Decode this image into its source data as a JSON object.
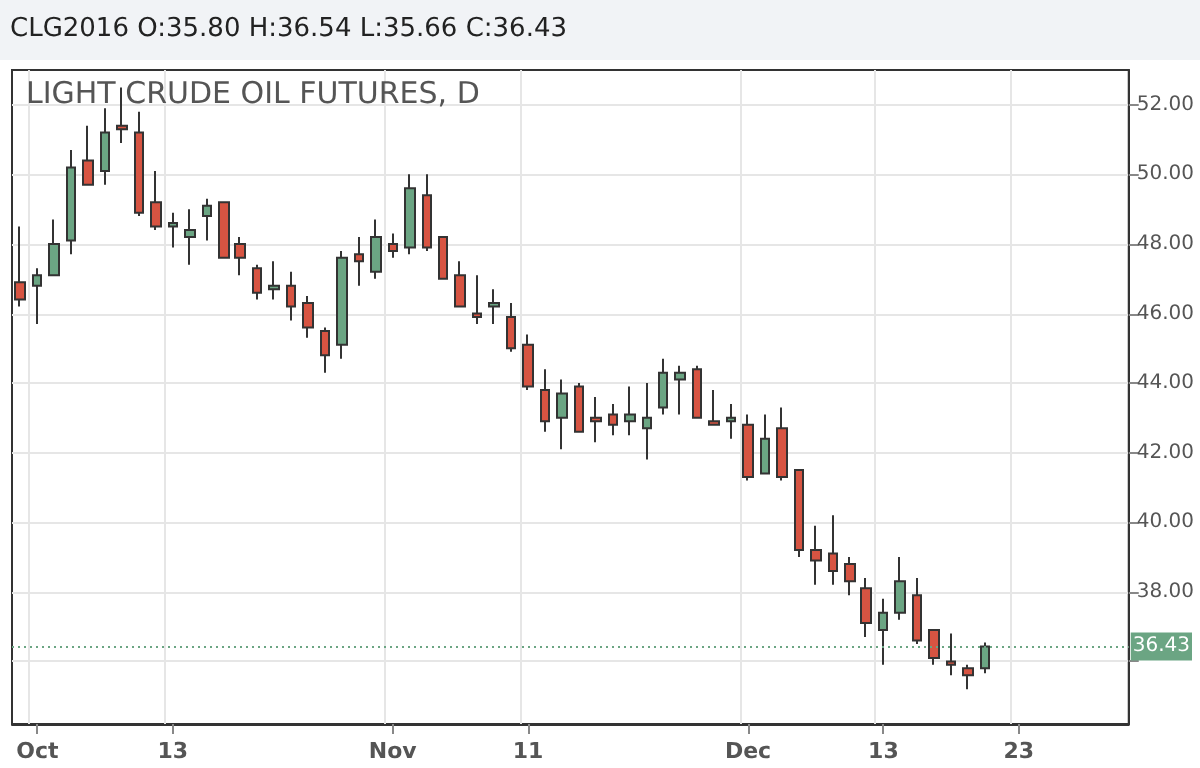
{
  "chart_data": {
    "type": "candlestick",
    "title": "LIGHT CRUDE OIL FUTURES, D",
    "subtitle": "CLG2016 O:35.80 H:36.54 L:35.66 C:36.43",
    "categories": [
      null,
      "Oct",
      null,
      null,
      null,
      null,
      null,
      null,
      null,
      "13",
      null,
      null,
      null,
      null,
      null,
      null,
      null,
      null,
      null,
      null,
      null,
      null,
      "Nov",
      null,
      null,
      null,
      null,
      null,
      null,
      null,
      "11",
      null,
      null,
      null,
      null,
      null,
      null,
      null,
      null,
      null,
      null,
      null,
      null,
      "Dec",
      null,
      null,
      null,
      null,
      null,
      null,
      null,
      "13",
      null,
      null,
      null,
      null,
      null,
      null,
      null,
      "23",
      null,
      null,
      null,
      null,
      null,
      null
    ],
    "ohlc": [
      [
        46.9,
        48.5,
        46.2,
        46.4
      ],
      [
        46.8,
        47.3,
        45.7,
        47.1
      ],
      [
        47.1,
        48.7,
        47.1,
        48.0
      ],
      [
        48.1,
        50.7,
        47.7,
        50.2
      ],
      [
        50.4,
        51.4,
        49.7,
        49.7
      ],
      [
        50.1,
        51.9,
        49.7,
        51.2
      ],
      [
        51.4,
        52.5,
        50.9,
        51.3
      ],
      [
        51.2,
        51.8,
        48.8,
        48.9
      ],
      [
        49.2,
        50.1,
        48.4,
        48.5
      ],
      [
        48.5,
        48.9,
        47.9,
        48.6
      ],
      [
        48.2,
        49.0,
        47.4,
        48.4
      ],
      [
        48.8,
        49.3,
        48.1,
        49.1
      ],
      [
        49.2,
        49.2,
        47.6,
        47.6
      ],
      [
        48.0,
        48.2,
        47.1,
        47.6
      ],
      [
        47.3,
        47.4,
        46.4,
        46.6
      ],
      [
        46.7,
        47.5,
        46.4,
        46.8
      ],
      [
        46.8,
        47.2,
        45.8,
        46.2
      ],
      [
        46.3,
        46.5,
        45.3,
        45.6
      ],
      [
        45.5,
        45.6,
        44.3,
        44.8
      ],
      [
        45.1,
        47.8,
        44.7,
        47.6
      ],
      [
        47.7,
        48.2,
        46.8,
        47.5
      ],
      [
        47.2,
        48.7,
        47.0,
        48.2
      ],
      [
        48.0,
        48.3,
        47.6,
        47.8
      ],
      [
        47.9,
        50.0,
        47.7,
        49.6
      ],
      [
        49.4,
        50.0,
        47.8,
        47.9
      ],
      [
        48.2,
        48.2,
        47.0,
        47.0
      ],
      [
        47.1,
        47.5,
        46.2,
        46.2
      ],
      [
        46.0,
        47.1,
        45.7,
        45.9
      ],
      [
        46.2,
        46.7,
        45.7,
        46.3
      ],
      [
        45.9,
        46.3,
        44.9,
        45.0
      ],
      [
        45.1,
        45.4,
        43.8,
        43.9
      ],
      [
        43.8,
        44.4,
        42.6,
        42.9
      ],
      [
        43.0,
        44.1,
        42.1,
        43.7
      ],
      [
        43.9,
        44.0,
        42.6,
        42.6
      ],
      [
        43.0,
        43.6,
        42.3,
        42.9
      ],
      [
        43.1,
        43.4,
        42.5,
        42.8
      ],
      [
        42.9,
        43.9,
        42.5,
        43.1
      ],
      [
        42.7,
        44.0,
        41.8,
        43.0
      ],
      [
        43.3,
        44.7,
        43.1,
        44.3
      ],
      [
        44.1,
        44.5,
        43.1,
        44.3
      ],
      [
        44.4,
        44.5,
        43.0,
        43.0
      ],
      [
        42.9,
        43.8,
        42.8,
        42.8
      ],
      [
        42.9,
        43.4,
        42.4,
        43.0
      ],
      [
        42.8,
        43.1,
        41.2,
        41.3
      ],
      [
        41.4,
        43.1,
        41.4,
        42.4
      ],
      [
        42.7,
        43.3,
        41.2,
        41.3
      ],
      [
        41.5,
        41.5,
        39.0,
        39.2
      ],
      [
        39.2,
        39.9,
        38.2,
        38.9
      ],
      [
        39.1,
        40.2,
        38.2,
        38.6
      ],
      [
        38.8,
        39.0,
        37.9,
        38.3
      ],
      [
        38.1,
        38.4,
        36.7,
        37.1
      ],
      [
        36.9,
        37.8,
        35.9,
        37.4
      ],
      [
        37.4,
        39.0,
        37.2,
        38.3
      ],
      [
        37.9,
        38.4,
        36.5,
        36.6
      ],
      [
        36.9,
        36.9,
        35.9,
        36.1
      ],
      [
        36.0,
        36.8,
        35.6,
        35.9
      ],
      [
        35.8,
        35.9,
        35.2,
        35.6
      ],
      [
        35.8,
        36.54,
        35.66,
        36.43
      ],
      null,
      null,
      null,
      null,
      null,
      null,
      null,
      null
    ],
    "colors": [
      "#d75442",
      "#6ba583",
      "#6ba583",
      "#6ba583",
      "#d75442",
      "#6ba583",
      "#d75442",
      "#d75442",
      "#d75442",
      "#6ba583",
      "#6ba583",
      "#6ba583",
      "#d75442",
      "#d75442",
      "#d75442",
      "#6ba583",
      "#d75442",
      "#d75442",
      "#d75442",
      "#6ba583",
      "#d75442",
      "#6ba583",
      "#d75442",
      "#6ba583",
      "#d75442",
      "#d75442",
      "#d75442",
      "#d75442",
      "#6ba583",
      "#d75442",
      "#d75442",
      "#d75442",
      "#6ba583",
      "#d75442",
      "#d75442",
      "#d75442",
      "#6ba583",
      "#6ba583",
      "#6ba583",
      "#6ba583",
      "#d75442",
      "#d75442",
      "#6ba583",
      "#d75442",
      "#6ba583",
      "#d75442",
      "#d75442",
      "#d75442",
      "#d75442",
      "#d75442",
      "#d75442",
      "#6ba583",
      "#6ba583",
      "#d75442",
      "#d75442",
      "#d75442",
      "#d75442",
      "#6ba583",
      null,
      null,
      null,
      null,
      null,
      null,
      null,
      null
    ],
    "ylim": [
      34.2,
      53.0
    ],
    "yticks": [
      {
        "value": 36,
        "label": null
      },
      {
        "value": 38,
        "label": "38.00"
      },
      {
        "value": 40,
        "label": "40.00"
      },
      {
        "value": 42,
        "label": "42.00"
      },
      {
        "value": 44,
        "label": "44.00"
      },
      {
        "value": 46,
        "label": "46.00"
      },
      {
        "value": 48,
        "label": "48.00"
      },
      {
        "value": 50,
        "label": "50.00"
      },
      {
        "value": 52,
        "label": "52.00"
      }
    ],
    "ref_lines": [
      {
        "axis": "y",
        "value": 36.43,
        "label": "36.43",
        "color": "#6ba583",
        "line_style": "dotted"
      }
    ],
    "grid": true
  }
}
